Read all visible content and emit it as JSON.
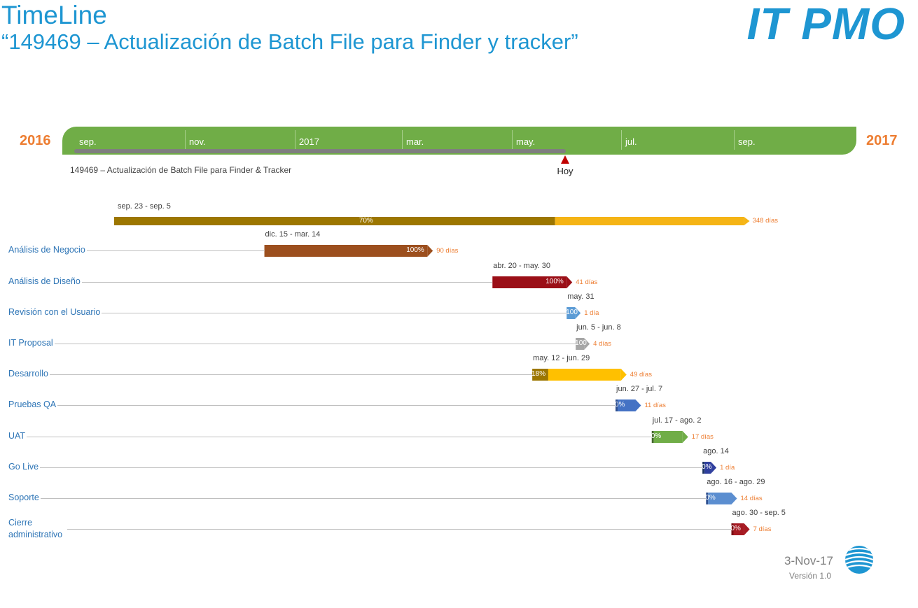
{
  "header": {
    "title": "TimeLine",
    "subtitle": "“149469 – Actualización de Batch File para Finder y tracker”",
    "logo_text": "IT PMO"
  },
  "scale": {
    "year_start": "2016",
    "year_end": "2017",
    "labels": [
      "sep.",
      "nov.",
      "2017",
      "mar.",
      "may.",
      "jul.",
      "sep."
    ],
    "project_label": "149469 – Actualización de Batch File para Finder & Tracker",
    "today_label": "Hoy"
  },
  "footer": {
    "date": "3-Nov-17",
    "version": "Versión 1.0"
  },
  "colors": {
    "accent": "#1e96d2",
    "scale_green": "#70ad47",
    "year": "#ed7d31",
    "today_marker": "#c00000"
  },
  "chart_data": {
    "type": "gantt",
    "x_range": [
      "2016-09-01",
      "2017-09-30"
    ],
    "summary": {
      "dates_label": "sep. 23 - sep. 5",
      "start": "2016-09-23",
      "end": "2017-09-05",
      "percent": 70,
      "percent_label": "70%",
      "duration_label": "348 días",
      "done_color": "#9c7600",
      "remaining_color": "#f5b415"
    },
    "tasks": [
      {
        "name": "Análisis de Negocio",
        "dates_label": "dic. 15 - mar. 14",
        "start": "2016-12-15",
        "end": "2017-03-14",
        "percent": 100,
        "percent_label": "100%",
        "duration_label": "90 días",
        "done_color": "#9c4f1e",
        "remaining_color": "#c97b3e"
      },
      {
        "name": "Análisis de Diseño",
        "dates_label": "abr. 20 - may. 30",
        "start": "2017-04-20",
        "end": "2017-05-30",
        "percent": 100,
        "percent_label": "100%",
        "duration_label": "41 días",
        "done_color": "#9b0f17",
        "remaining_color": "#c0202a"
      },
      {
        "name": "Revisión con el Usuario",
        "dates_label": "may. 31",
        "start": "2017-05-31",
        "end": "2017-05-31",
        "percent": 100,
        "percent_label": "100",
        "duration_label": "1 día",
        "done_color": "#5b9bd5",
        "remaining_color": "#8ebde8"
      },
      {
        "name": "IT Proposal",
        "dates_label": "jun. 5 - jun. 8",
        "start": "2017-06-05",
        "end": "2017-06-08",
        "percent": 100,
        "percent_label": "100",
        "duration_label": "4 días",
        "done_color": "#a6a6a6",
        "remaining_color": "#c9c9c9"
      },
      {
        "name": "Desarrollo",
        "dates_label": "may. 12 - jun. 29",
        "start": "2017-05-12",
        "end": "2017-06-29",
        "percent": 18,
        "percent_label": "18%",
        "duration_label": "49 días",
        "done_color": "#9c7600",
        "remaining_color": "#ffc000"
      },
      {
        "name": "Pruebas QA",
        "dates_label": "jun. 27 - jul. 7",
        "start": "2017-06-27",
        "end": "2017-07-07",
        "percent": 0,
        "percent_label": "0%",
        "duration_label": "11 días",
        "done_color": "#2e4f8f",
        "remaining_color": "#4472c4"
      },
      {
        "name": "UAT",
        "dates_label": "jul. 17 - ago. 2",
        "start": "2017-07-17",
        "end": "2017-08-02",
        "percent": 0,
        "percent_label": "0%",
        "duration_label": "17 días",
        "done_color": "#44682b",
        "remaining_color": "#70ad47"
      },
      {
        "name": "Go Live",
        "dates_label": "ago. 14",
        "start": "2017-08-14",
        "end": "2017-08-14",
        "percent": 0,
        "percent_label": "0%",
        "duration_label": "1 día",
        "done_color": "#203864",
        "remaining_color": "#2f3f9e"
      },
      {
        "name": "Soporte",
        "dates_label": "ago. 16 - ago. 29",
        "start": "2017-08-16",
        "end": "2017-08-29",
        "percent": 0,
        "percent_label": "0%",
        "duration_label": "14 días",
        "done_color": "#2e4f8f",
        "remaining_color": "#5b8ed0"
      },
      {
        "name": "Cierre administrativo",
        "dates_label": "ago. 30 - sep. 5",
        "start": "2017-08-30",
        "end": "2017-09-05",
        "percent": 0,
        "percent_label": "0%",
        "duration_label": "7 días",
        "done_color": "#7a0c12",
        "remaining_color": "#a61a22"
      }
    ]
  }
}
